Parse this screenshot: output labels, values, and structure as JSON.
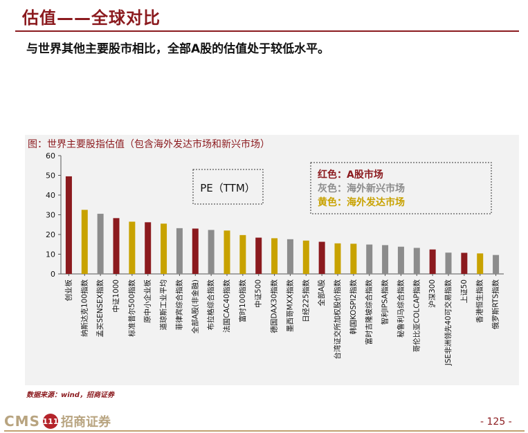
{
  "header": {
    "title": "估值——全球对比",
    "subtitle": "与世界其他主要股市相比，全部A股的估值处于较低水平。"
  },
  "figure": {
    "caption": "图：世界主要股指估值（包含海外发达市场和新兴市场）",
    "pe_box_label": "PE（TTM）",
    "legend": [
      {
        "text": "红色：A股市场",
        "color": "#8b1a1e"
      },
      {
        "text": "灰色：海外新兴市场",
        "color": "#8c8c8c"
      },
      {
        "text": "黄色：海外发达市场",
        "color": "#c8a200"
      }
    ]
  },
  "colors": {
    "red": "#8b1a1e",
    "gray": "#8c8c8c",
    "gold": "#c8a200",
    "brand": "#8b1a1e"
  },
  "chart_data": {
    "type": "bar",
    "ylim": [
      0,
      60
    ],
    "yticks": [
      0,
      10,
      20,
      30,
      40,
      50,
      60
    ],
    "grid": false,
    "categories": [
      "创业板",
      "纳斯达克100指数",
      "孟买SENSEX指数",
      "中证1000",
      "标准普尔500指数",
      "原中小企业板",
      "道琼斯工业平均",
      "菲律宾综合指数",
      "全部A股(非金融)",
      "布拉格综合指数",
      "法国CAC40指数",
      "富时100指数",
      "中证500",
      "德国DAX30指数",
      "墨西哥MXX指数",
      "日经225指数",
      "全部A股",
      "台湾证交所加权股价指数",
      "韩国KOSPI2指数",
      "富时吉隆坡综合指数",
      "智利IPSA指数",
      "秘鲁利马综合指数",
      "哥伦比亚COLCAP指数",
      "沪深300",
      "JSE非洲领先40可交易指数",
      "上证50",
      "香港恒生指数",
      "俄罗斯RTS指数"
    ],
    "values": [
      49.5,
      32.5,
      30.5,
      28.3,
      26.5,
      26.2,
      25.5,
      23.2,
      23.0,
      22.3,
      22.0,
      19.7,
      18.4,
      18.1,
      17.6,
      16.9,
      16.3,
      15.5,
      15.3,
      14.9,
      14.6,
      13.8,
      13.2,
      12.4,
      10.8,
      10.7,
      10.4,
      9.6
    ],
    "groups": [
      "red",
      "gold",
      "gray",
      "red",
      "gold",
      "red",
      "gold",
      "gray",
      "red",
      "gray",
      "gold",
      "gold",
      "red",
      "gold",
      "gray",
      "gold",
      "red",
      "gold",
      "gold",
      "gray",
      "gray",
      "gray",
      "gray",
      "red",
      "gray",
      "red",
      "gold",
      "gray"
    ]
  },
  "footer": {
    "source": "数据来源：wind，招商证券",
    "logo_latin": "CMS",
    "logo_badge": "111",
    "logo_cn": "招商证券",
    "page_number": "- 125 -"
  }
}
